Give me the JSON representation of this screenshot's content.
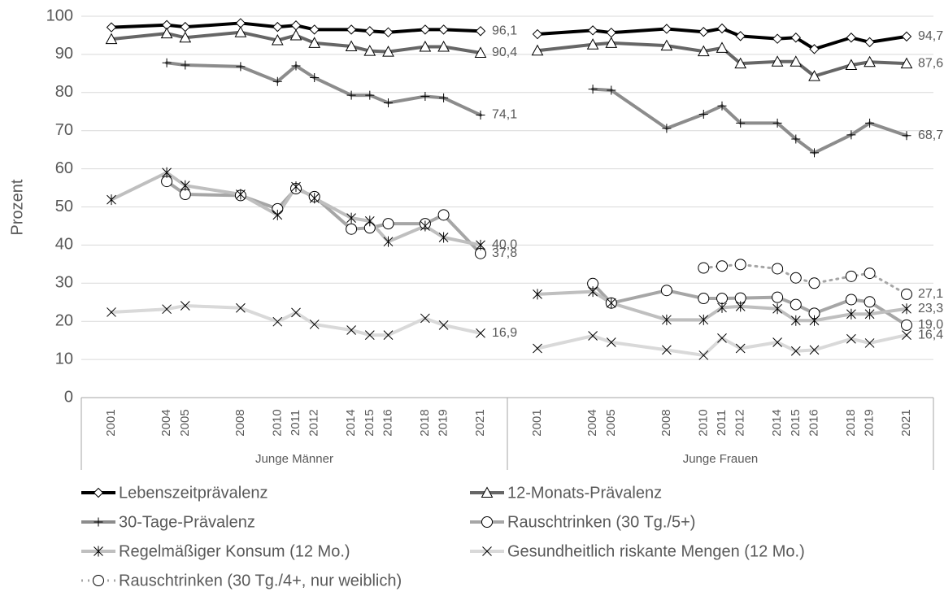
{
  "chart_data": {
    "type": "line",
    "ylabel": "Prozent",
    "ylim": [
      0,
      100
    ],
    "yticks": [
      0,
      10,
      20,
      30,
      40,
      50,
      60,
      70,
      80,
      90,
      100
    ],
    "grid": true,
    "groups": [
      {
        "name": "Junge Männer",
        "x": [
          2001,
          2004,
          2005,
          2008,
          2010,
          2011,
          2012,
          2014,
          2015,
          2016,
          2018,
          2019,
          2021
        ]
      },
      {
        "name": "Junge Frauen",
        "x": [
          2001,
          2004,
          2005,
          2008,
          2010,
          2011,
          2012,
          2014,
          2015,
          2016,
          2018,
          2019,
          2021
        ]
      }
    ],
    "series": [
      {
        "name": "Lebenszeitprävalenz",
        "color": "#000000",
        "marker": "diamond",
        "dash": "solid",
        "values": [
          [
            97.1,
            97.7,
            97.2,
            98.2,
            97.2,
            97.6,
            96.5,
            96.5,
            96.1,
            95.8,
            96.5,
            96.5,
            96.1
          ],
          [
            95.3,
            96.3,
            95.7,
            96.7,
            95.9,
            96.8,
            94.8,
            94.1,
            94.4,
            91.4,
            94.4,
            93.2,
            94.7
          ]
        ],
        "value_labels": [
          [
            null,
            null,
            null,
            null,
            null,
            null,
            null,
            null,
            null,
            null,
            null,
            null,
            "96,1"
          ],
          [
            null,
            null,
            null,
            null,
            null,
            null,
            null,
            null,
            null,
            null,
            null,
            null,
            "94,7"
          ]
        ]
      },
      {
        "name": "12-Monats-Prävalenz",
        "color": "#666666",
        "marker": "triangle",
        "dash": "solid",
        "values": [
          [
            94.0,
            95.5,
            94.4,
            95.8,
            93.7,
            95.0,
            93.0,
            92.1,
            90.9,
            90.7,
            92.0,
            92.0,
            90.4
          ],
          [
            91.0,
            92.6,
            93.0,
            92.3,
            90.8,
            91.7,
            87.6,
            88.1,
            88.1,
            84.3,
            87.2,
            88.0,
            87.6
          ]
        ],
        "value_labels": [
          [
            null,
            null,
            null,
            null,
            null,
            null,
            null,
            null,
            null,
            null,
            null,
            null,
            "90,4"
          ],
          [
            null,
            null,
            null,
            null,
            null,
            null,
            null,
            null,
            null,
            null,
            null,
            null,
            "87,6"
          ]
        ]
      },
      {
        "name": "30-Tage-Prävalenz",
        "color": "#8c8c8c",
        "marker": "plus",
        "dash": "solid",
        "values": [
          [
            null,
            87.8,
            87.2,
            86.8,
            82.9,
            87.0,
            83.9,
            79.3,
            79.3,
            77.3,
            79.0,
            78.6,
            74.1
          ],
          [
            null,
            80.9,
            80.6,
            70.6,
            74.3,
            76.5,
            72.0,
            72.0,
            67.8,
            64.2,
            68.9,
            72.0,
            68.7
          ]
        ],
        "value_labels": [
          [
            null,
            null,
            null,
            null,
            null,
            null,
            null,
            null,
            null,
            null,
            null,
            null,
            "74,1"
          ],
          [
            null,
            null,
            null,
            null,
            null,
            null,
            null,
            null,
            null,
            null,
            null,
            null,
            "68,7"
          ]
        ]
      },
      {
        "name": "Rauschtrinken (30 Tg./5+)",
        "color": "#a6a6a6",
        "marker": "circle",
        "dash": "solid",
        "values": [
          [
            null,
            56.7,
            53.3,
            53.0,
            49.5,
            54.8,
            52.7,
            44.2,
            44.5,
            45.6,
            45.6,
            47.9,
            37.8
          ],
          [
            null,
            29.9,
            24.8,
            28.1,
            26.0,
            26.0,
            26.1,
            26.3,
            24.4,
            22.1,
            25.7,
            25.1,
            19.0
          ]
        ],
        "value_labels": [
          [
            null,
            null,
            null,
            null,
            null,
            null,
            null,
            null,
            null,
            null,
            null,
            null,
            "37,8"
          ],
          [
            null,
            null,
            null,
            null,
            null,
            null,
            null,
            null,
            null,
            null,
            null,
            null,
            "19,0"
          ]
        ]
      },
      {
        "name": "Regelmäßiger Konsum (12 Mo.)",
        "color": "#bfbfbf",
        "marker": "asterisk",
        "dash": "solid",
        "values": [
          [
            51.9,
            59.0,
            55.6,
            53.3,
            47.9,
            55.3,
            52.3,
            47.1,
            46.3,
            40.9,
            45.0,
            42.0,
            40.0
          ],
          [
            27.1,
            27.8,
            24.8,
            20.4,
            20.4,
            23.6,
            23.9,
            23.3,
            20.2,
            20.2,
            21.9,
            21.9,
            23.3
          ]
        ],
        "value_labels": [
          [
            null,
            null,
            null,
            null,
            null,
            null,
            null,
            null,
            null,
            null,
            null,
            null,
            "40,0"
          ],
          [
            null,
            null,
            null,
            null,
            null,
            null,
            null,
            null,
            null,
            null,
            null,
            null,
            "23,3"
          ]
        ]
      },
      {
        "name": "Gesundheitlich riskante Mengen (12 Mo.)",
        "color": "#d9d9d9",
        "marker": "x",
        "dash": "solid",
        "values": [
          [
            22.4,
            23.2,
            24.1,
            23.5,
            19.9,
            22.3,
            19.2,
            17.7,
            16.4,
            16.4,
            20.8,
            19.0,
            16.9
          ],
          [
            12.9,
            16.2,
            14.5,
            12.5,
            11.1,
            15.6,
            12.9,
            14.5,
            12.2,
            12.5,
            15.4,
            14.3,
            16.4
          ]
        ],
        "value_labels": [
          [
            null,
            null,
            null,
            null,
            null,
            null,
            null,
            null,
            null,
            null,
            null,
            null,
            "16,9"
          ],
          [
            null,
            null,
            null,
            null,
            null,
            null,
            null,
            null,
            null,
            null,
            null,
            null,
            "16,4"
          ]
        ]
      },
      {
        "name": "Rauschtrinken (30 Tg./4+, nur weiblich)",
        "color": "#a6a6a6",
        "marker": "circle",
        "dash": "dotted",
        "values": [
          [
            null,
            null,
            null,
            null,
            null,
            null,
            null,
            null,
            null,
            null,
            null,
            null,
            null
          ],
          [
            null,
            null,
            null,
            null,
            34.0,
            34.5,
            34.9,
            33.8,
            31.4,
            30.0,
            31.8,
            32.6,
            27.1
          ]
        ],
        "value_labels": [
          [
            null,
            null,
            null,
            null,
            null,
            null,
            null,
            null,
            null,
            null,
            null,
            null,
            null
          ],
          [
            null,
            null,
            null,
            null,
            null,
            null,
            null,
            null,
            null,
            null,
            null,
            null,
            "27,1"
          ]
        ]
      }
    ]
  }
}
